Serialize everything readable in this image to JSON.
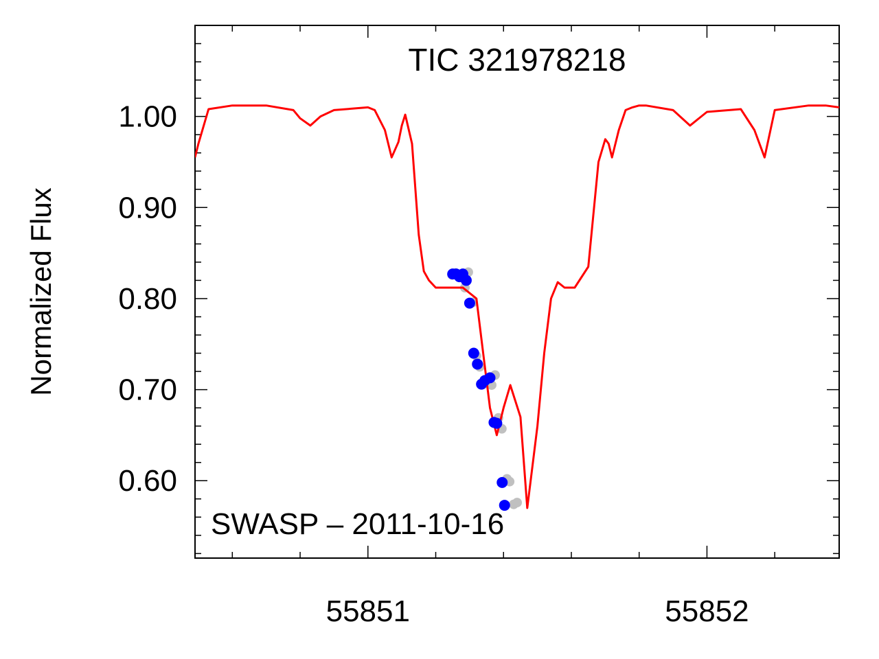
{
  "chart_data": {
    "type": "line",
    "title": "TIC 321978218",
    "annotation": "SWASP – 2011-10-16",
    "xlabel": "",
    "ylabel": "Normalized Flux",
    "xlim": [
      55850.49,
      55852.39
    ],
    "ylim": [
      0.515,
      1.1
    ],
    "x_ticks": [
      55851,
      55852
    ],
    "x_tick_labels": [
      "55851",
      "55852"
    ],
    "y_ticks": [
      0.6,
      0.7,
      0.8,
      0.9,
      1.0
    ],
    "y_tick_labels": [
      "0.60",
      "0.70",
      "0.80",
      "0.90",
      "1.00"
    ],
    "grid": false,
    "series": [
      {
        "kind": "line",
        "color": "#ff0000",
        "x": [
          55850.49,
          55850.5,
          55850.53,
          55850.6,
          55850.7,
          55850.78,
          55850.8,
          55850.83,
          55850.86,
          55850.9,
          55851.0,
          55851.02,
          55851.05,
          55851.07,
          55851.09,
          55851.1,
          55851.11,
          55851.13,
          55851.15,
          55851.165,
          55851.18,
          55851.2,
          55851.22,
          55851.25,
          55851.28,
          55851.32,
          55851.34,
          55851.36,
          55851.38,
          55851.4,
          55851.42,
          55851.45,
          55851.47,
          55851.5,
          55851.52,
          55851.54,
          55851.56,
          55851.58,
          55851.61,
          55851.65,
          55851.68,
          55851.7,
          55851.71,
          55851.72,
          55851.74,
          55851.76,
          55851.78,
          55851.8,
          55851.82,
          55851.9,
          55851.95,
          55852.0,
          55852.1,
          55852.14,
          55852.17,
          55852.2,
          55852.3,
          55852.35,
          55852.39
        ],
        "y": [
          0.955,
          0.97,
          1.008,
          1.012,
          1.012,
          1.007,
          0.998,
          0.99,
          1.0,
          1.007,
          1.01,
          1.007,
          0.985,
          0.955,
          0.972,
          0.99,
          1.002,
          0.97,
          0.87,
          0.83,
          0.82,
          0.812,
          0.812,
          0.812,
          0.812,
          0.8,
          0.74,
          0.68,
          0.65,
          0.68,
          0.705,
          0.67,
          0.57,
          0.66,
          0.74,
          0.8,
          0.818,
          0.812,
          0.812,
          0.835,
          0.95,
          0.975,
          0.97,
          0.955,
          0.985,
          1.007,
          1.01,
          1.012,
          1.012,
          1.007,
          0.99,
          1.005,
          1.008,
          0.985,
          0.955,
          1.007,
          1.012,
          1.012,
          1.01
        ]
      },
      {
        "kind": "scatter",
        "color": "#c0c0c0",
        "x": [
          55851.248,
          55851.258,
          55851.268,
          55851.278,
          55851.286,
          55851.296,
          55851.31,
          55851.32,
          55851.33,
          55851.34,
          55851.355,
          55851.365,
          55851.375,
          55851.385,
          55851.395,
          55851.41,
          55851.418,
          55851.43,
          55851.44
        ],
        "y": [
          0.826,
          0.828,
          0.824,
          0.827,
          0.812,
          0.829,
          0.796,
          0.737,
          0.725,
          0.706,
          0.71,
          0.705,
          0.716,
          0.669,
          0.657,
          0.602,
          0.599,
          0.574,
          0.576
        ]
      },
      {
        "kind": "scatter",
        "color": "#0000ff",
        "x": [
          55851.25,
          55851.26,
          55851.27,
          55851.28,
          55851.29,
          55851.3,
          55851.312,
          55851.323,
          55851.335,
          55851.345,
          55851.36,
          55851.372,
          55851.38,
          55851.396,
          55851.403
        ],
        "y": [
          0.827,
          0.827,
          0.824,
          0.827,
          0.82,
          0.795,
          0.74,
          0.728,
          0.706,
          0.71,
          0.713,
          0.664,
          0.663,
          0.598,
          0.573
        ]
      }
    ]
  }
}
